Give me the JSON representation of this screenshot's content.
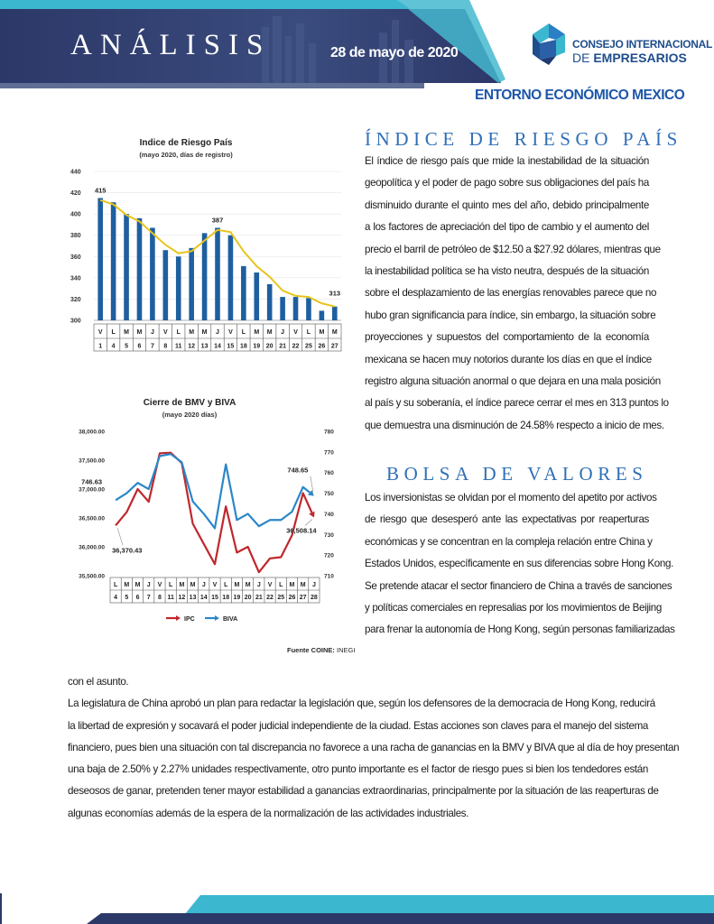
{
  "header": {
    "title": "ANÁLISIS",
    "date": "28 de mayo de 2020",
    "logo_line1": "CONSEJO INTERNACIONAL",
    "logo_line2_prefix": "DE ",
    "logo_line2_strong": "EMPRESARIOS",
    "section": "ENTORNO ECONÓMICO MEXICO",
    "colors": {
      "navy": "#2b3a6b",
      "teal": "#3bb7cf",
      "blue": "#1d56a8"
    }
  },
  "chart_data": [
    {
      "type": "bar",
      "title": "Indice de Riesgo País",
      "subtitle": "(mayo 2020, días de registro)",
      "categories": [
        "1",
        "4",
        "5",
        "6",
        "7",
        "8",
        "11",
        "12",
        "13",
        "14",
        "15",
        "18",
        "19",
        "20",
        "21",
        "22",
        "25",
        "26",
        "27"
      ],
      "day_letters": [
        "V",
        "L",
        "M",
        "M",
        "J",
        "V",
        "L",
        "M",
        "M",
        "J",
        "V",
        "L",
        "M",
        "M",
        "J",
        "V",
        "L",
        "M",
        "M"
      ],
      "values": [
        415,
        411,
        400,
        396,
        387,
        366,
        360,
        368,
        382,
        387,
        380,
        351,
        345,
        334,
        322,
        322,
        321,
        309,
        313
      ],
      "trend": [
        413,
        409,
        399,
        393,
        382,
        371,
        363,
        365,
        375,
        385,
        383,
        365,
        351,
        341,
        328,
        323,
        322,
        316,
        313
      ],
      "ylim": [
        300,
        440
      ],
      "yticks": [
        300,
        320,
        340,
        360,
        380,
        400,
        420,
        440
      ],
      "annotations": [
        {
          "index": 0,
          "text": "415"
        },
        {
          "index": 9,
          "text": "387"
        },
        {
          "index": 18,
          "text": "313"
        }
      ],
      "colors": {
        "bar": "#1e5fa0",
        "trend": "#e8c41c"
      }
    },
    {
      "type": "line",
      "title": "Cierre de BMV y BIVA",
      "subtitle": "(mayo 2020 días)",
      "categories": [
        "4",
        "5",
        "6",
        "7",
        "8",
        "11",
        "12",
        "13",
        "14",
        "15",
        "18",
        "19",
        "20",
        "21",
        "22",
        "25",
        "26",
        "27",
        "28"
      ],
      "day_letters": [
        "L",
        "M",
        "M",
        "J",
        "V",
        "L",
        "M",
        "M",
        "J",
        "V",
        "L",
        "M",
        "M",
        "J",
        "V",
        "L",
        "M",
        "M",
        "J"
      ],
      "series": [
        {
          "name": "IPC",
          "axis": "left",
          "color": "#c0272d",
          "values": [
            36370.43,
            36600,
            37000,
            36780,
            37620,
            37630,
            37450,
            36400,
            36050,
            35700,
            36700,
            35900,
            36000,
            35560,
            35800,
            35820,
            36200,
            36930,
            36508.14
          ]
        },
        {
          "name": "BIVA",
          "axis": "right",
          "color": "#2b87c8",
          "values": [
            746.63,
            750,
            755,
            752,
            768,
            769,
            765,
            746,
            740,
            733,
            764,
            737,
            740,
            734,
            737,
            737,
            741,
            753,
            748.65
          ]
        }
      ],
      "yleft_ticks": [
        "35,500.00",
        "36,000.00",
        "36,500.00",
        "37,000.00",
        "37,500.00",
        "38,000.00"
      ],
      "yleft_lim": [
        35500,
        38000
      ],
      "yright_ticks": [
        710,
        720,
        730,
        740,
        750,
        760,
        770,
        780
      ],
      "yright_lim": [
        710,
        780
      ],
      "annotations": [
        {
          "series": "BIVA",
          "index": 0,
          "text": "746.63"
        },
        {
          "series": "IPC",
          "index": 0,
          "text": "36,370.43"
        },
        {
          "series": "BIVA",
          "index": 18,
          "text": "748.65"
        },
        {
          "series": "IPC",
          "index": 18,
          "text": "36,508.14"
        }
      ],
      "legend": [
        "IPC",
        "BIVA"
      ]
    }
  ],
  "source": {
    "label": "Fuente COINE:",
    "value": " INEGI"
  },
  "riesgo": {
    "heading": "ÍNDICE DE RIESGO PAÍS",
    "lines": [
      "El índice de riesgo país que mide la inestabilidad de la situación",
      "geopolítica y el poder de pago sobre sus obligaciones del país ha",
      "disminuido durante el quinto mes del año, debido principalmente",
      "a los factores de apreciación del tipo de cambio y el aumento del",
      "precio el barril de petróleo de $12.50 a $27.92 dólares, mientras que",
      "la inestabilidad política se ha visto neutra, después de la situación",
      "sobre el desplazamiento de las energías renovables parece que no",
      "hubo gran significancia para índice, sin embargo, la situación sobre",
      "proyecciones y supuestos del comportamiento de la economía",
      "mexicana se hacen muy notorios durante los días en que el índice",
      "registro alguna situación anormal o que dejara en una mala posición",
      "al país y su soberanía, el índice parece cerrar el mes en 313 puntos lo",
      "que demuestra una disminución de 24.58% respecto a inicio de mes."
    ]
  },
  "bolsa": {
    "heading": "BOLSA DE VALORES",
    "lines": [
      "Los inversionistas se olvidan por el momento del apetito por activos",
      "de riesgo que desesperó ante las expectativas por reaperturas",
      "económicas y se concentran en la compleja relación entre China y",
      "Estados Unidos, específicamente en sus diferencias sobre Hong Kong.",
      "Se pretende atacar el sector financiero de China a través de sanciones",
      "y políticas comerciales en represalias por los movimientos de Beijing",
      "para frenar la autonomía de Hong Kong, según personas familiarizadas"
    ]
  },
  "continuation": {
    "lines": [
      "con el asunto.",
      "La legislatura de China aprobó un plan para redactar la legislación que, según los defensores de la democracia de Hong Kong, reducirá",
      "la libertad de expresión y socavará el poder judicial independiente de la ciudad. Estas acciones son claves para el manejo del sistema",
      "financiero, pues bien una situación con tal discrepancia no favorece a una racha de ganancias en la BMV y BIVA que al día de hoy presentan",
      "una baja de 2.50%  y 2.27% unidades respectivamente, otro punto importante es el factor de riesgo pues si bien los tendedores están",
      "deseosos de ganar, pretenden tener mayor estabilidad a ganancias extraordinarias, principalmente por la situación de las reaperturas de",
      "algunas economías además de la espera de la normalización de las actividades industriales."
    ]
  }
}
